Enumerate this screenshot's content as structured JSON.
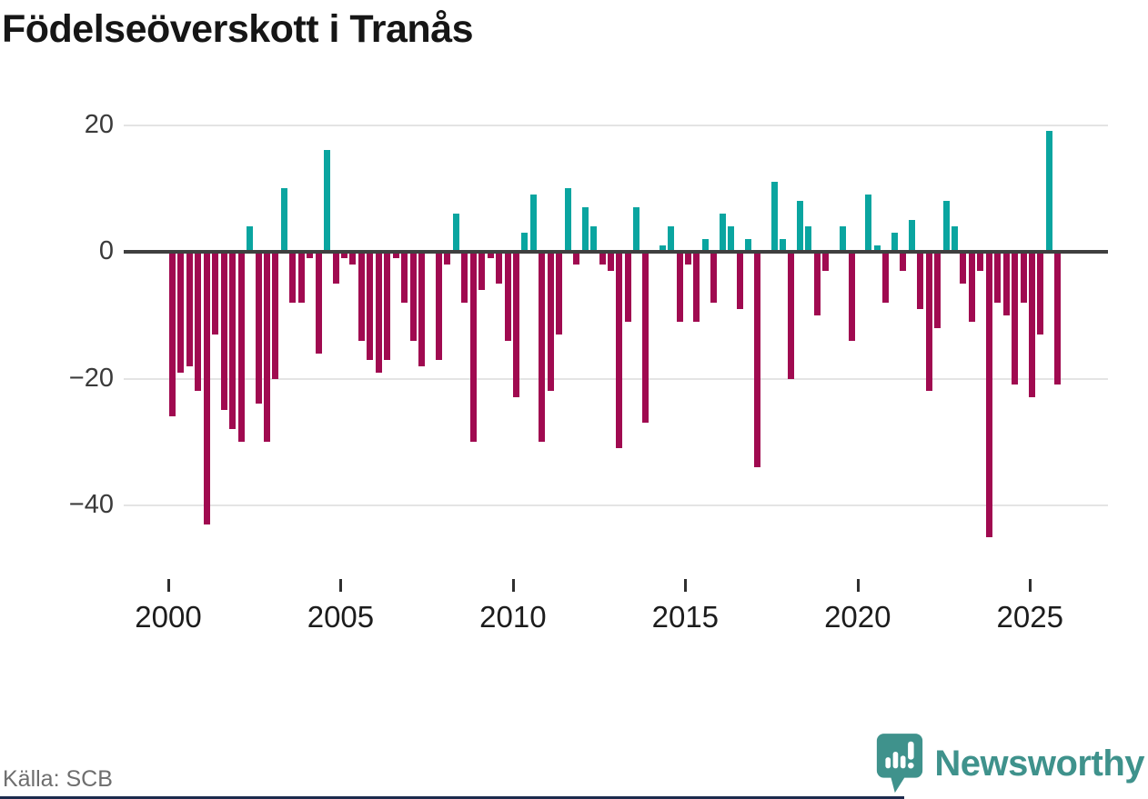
{
  "title": "Födelseöverskott i Tranås",
  "source": "Källa: SCB",
  "logo": {
    "text": "Newsworthy"
  },
  "colors": {
    "positive_bar": "#0aa5a0",
    "negative_bar": "#a00a50",
    "zero_line": "#3f3f3f",
    "gridline": "#e4e4e4",
    "logo_teal": "#3f928c",
    "footer_bar": "#1c2b4d",
    "title_text": "#161616",
    "axis_text": "#3a3a3a"
  },
  "chart_data": {
    "type": "bar",
    "frequency": "quarterly",
    "x_start": "2000-Q1",
    "x_end": "2025-Q4",
    "x_tick_labels": [
      "2000",
      "2005",
      "2010",
      "2015",
      "2020",
      "2025"
    ],
    "y_ticks": [
      20,
      0,
      -20,
      -40
    ],
    "ylim": [
      -47,
      22
    ],
    "grid": "horizontal",
    "values": [
      -26,
      -19,
      -18,
      -22,
      -43,
      -13,
      -25,
      -28,
      -30,
      4,
      -24,
      -30,
      -20,
      10,
      -8,
      -8,
      -1,
      -16,
      16,
      -5,
      -1,
      -2,
      -14,
      -17,
      -19,
      -17,
      -1,
      -8,
      -14,
      -18,
      0,
      -17,
      -2,
      6,
      -8,
      -30,
      -6,
      -1,
      -5,
      -14,
      -23,
      3,
      9,
      -30,
      -22,
      -13,
      10,
      -2,
      7,
      4,
      -2,
      -3,
      -31,
      -11,
      7,
      -27,
      0,
      1,
      4,
      -11,
      -2,
      -11,
      2,
      -8,
      6,
      4,
      -9,
      2,
      -34,
      0,
      11,
      2,
      -20,
      8,
      4,
      -10,
      -3,
      0,
      4,
      -14,
      0,
      9,
      1,
      -8,
      3,
      -3,
      5,
      -9,
      -22,
      -12,
      8,
      4,
      -5,
      -11,
      -3,
      -45,
      -8,
      -10,
      -21,
      -8,
      -23,
      -13,
      19,
      -21
    ]
  }
}
